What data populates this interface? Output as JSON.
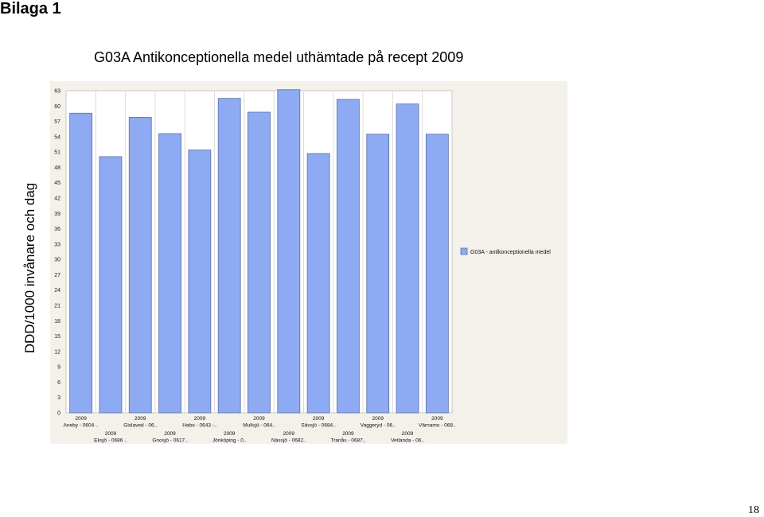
{
  "page": {
    "heading": "Bilaga 1",
    "page_number": "18"
  },
  "colors": {
    "bar_fill": "#8eaaf2",
    "bar_stroke": "#5c6fa8",
    "plot_background": "#ffffff",
    "frame_background": "#f3f1ea",
    "gridline": "#dddddd"
  },
  "chart_data": {
    "type": "bar",
    "title": "G03A Antikonceptionella medel uthämtade på recept 2009",
    "ylabel": "DDD/1000 invånare och dag",
    "xlabel": "",
    "ylim": [
      0,
      63
    ],
    "yticks": [
      0,
      3,
      6,
      9,
      12,
      15,
      18,
      21,
      24,
      27,
      30,
      33,
      36,
      39,
      42,
      45,
      48,
      51,
      54,
      57,
      60,
      63
    ],
    "grid": "vertical",
    "legend_position": "right",
    "categories": [
      {
        "year": "2009",
        "name": "Aneby - 0604 .."
      },
      {
        "year": "2009",
        "name": "Eksjö - 0686 .."
      },
      {
        "year": "2009",
        "name": "Gislaved - 06.."
      },
      {
        "year": "2009",
        "name": "Gnosjö - 0617.."
      },
      {
        "year": "2009",
        "name": "Habo - 0643 -.."
      },
      {
        "year": "2009",
        "name": "Jönköping - 0.."
      },
      {
        "year": "2009",
        "name": "Mullsjö - 064.."
      },
      {
        "year": "2009",
        "name": "Nässjö - 0682.."
      },
      {
        "year": "2009",
        "name": "Sävsjö - 0684.."
      },
      {
        "year": "2009",
        "name": "Tranås - 0687.."
      },
      {
        "year": "2009",
        "name": "Vaggeryd - 06.."
      },
      {
        "year": "2009",
        "name": "Vetlanda - 06.."
      },
      {
        "year": "2009",
        "name": "Värnamo - 068.."
      }
    ],
    "series": [
      {
        "name": "G03A - antikonceptionella medel",
        "values": [
          58.6,
          50.1,
          57.8,
          54.6,
          51.4,
          61.5,
          58.8,
          63.2,
          50.7,
          61.3,
          54.5,
          60.4,
          54.5
        ]
      }
    ]
  }
}
